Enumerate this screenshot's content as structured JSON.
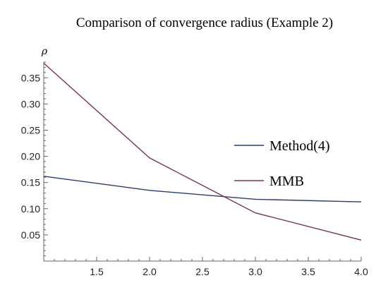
{
  "chart_data": {
    "type": "line",
    "title": "Comparison of convergence radius (Example 2)",
    "xlabel": "",
    "ylabel": "ρ",
    "xlim": [
      1.0,
      4.0
    ],
    "ylim": [
      0.0,
      0.38
    ],
    "xticks": [
      1.5,
      2.0,
      2.5,
      3.0,
      3.5,
      4.0
    ],
    "xtick_labels": [
      "1.5",
      "2.0",
      "2.5",
      "3.0",
      "3.5",
      "4.0"
    ],
    "yticks": [
      0.05,
      0.1,
      0.15,
      0.2,
      0.25,
      0.3,
      0.35
    ],
    "ytick_labels": [
      "0.05",
      "0.10",
      "0.15",
      "0.20",
      "0.25",
      "0.30",
      "0.35"
    ],
    "grid": false,
    "legend_position": "right",
    "series": [
      {
        "name": "Method(4)",
        "color": "#2b3a78",
        "x": [
          1.0,
          2.0,
          3.0,
          4.0
        ],
        "y": [
          0.162,
          0.135,
          0.118,
          0.113
        ]
      },
      {
        "name": "MMB",
        "color": "#7a3550",
        "x": [
          1.0,
          2.0,
          3.0,
          4.0
        ],
        "y": [
          0.378,
          0.197,
          0.092,
          0.04
        ]
      }
    ]
  }
}
